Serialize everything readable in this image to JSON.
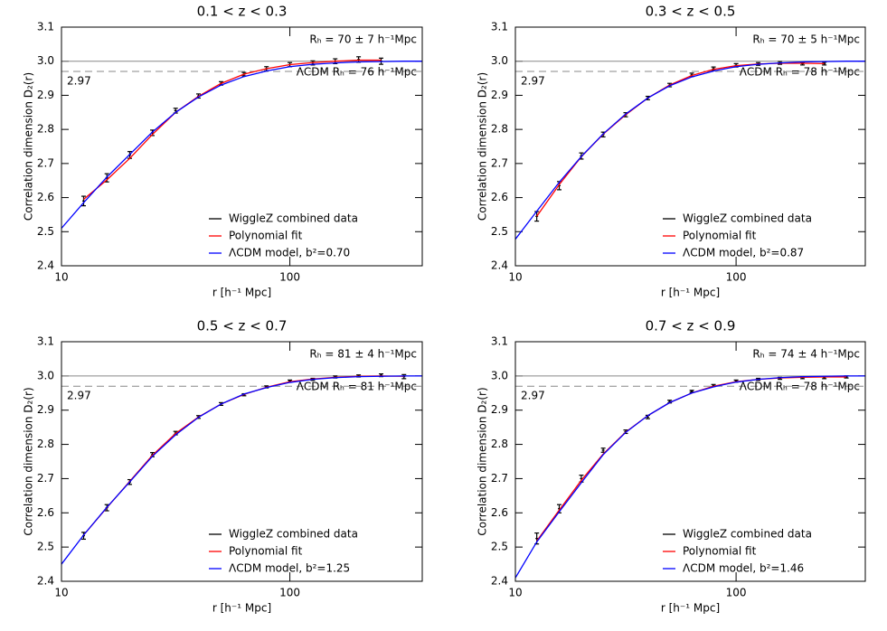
{
  "chart_data": [
    {
      "type": "line",
      "title": "0.1 < z < 0.3",
      "xlabel": "r [h⁻¹ Mpc]",
      "ylabel": "Correlation dimension D₂(r)",
      "log_x": true,
      "xlim": [
        10,
        380
      ],
      "ylim": [
        2.4,
        3.1
      ],
      "xticks": [
        10,
        100
      ],
      "yticks": [
        2.4,
        2.5,
        2.6,
        2.7,
        2.8,
        2.9,
        {
          "value": 3.0,
          "label": "3.0"
        },
        3.1
      ],
      "hlines": [
        {
          "y": 3.0,
          "style": "solid",
          "color": "#888888"
        },
        {
          "y": 2.97,
          "style": "dashed",
          "color": "#888888"
        }
      ],
      "annotations": [
        {
          "text": "Rₕ = 70 ± 7 h⁻¹Mpc",
          "color": "#ff0000"
        },
        {
          "text": "ΛCDM Rₕ = 76 h⁻¹Mpc",
          "color": "#0000ff"
        }
      ],
      "series": [
        {
          "name": "WiggleZ combined data",
          "color": "#000000",
          "style": "errorbar",
          "x": [
            12.5,
            15.8,
            19.9,
            25,
            31.6,
            39.8,
            50,
            63,
            79,
            100,
            126,
            158,
            200,
            251
          ],
          "values": [
            2.59,
            2.658,
            2.725,
            2.79,
            2.855,
            2.898,
            2.935,
            2.962,
            2.978,
            2.99,
            2.995,
            3.0,
            3.005,
            3.0
          ],
          "errors": [
            0.014,
            0.012,
            0.01,
            0.008,
            0.007,
            0.006,
            0.005,
            0.005,
            0.006,
            0.006,
            0.006,
            0.007,
            0.008,
            0.009
          ]
        },
        {
          "name": "Polynomial fit",
          "color": "#ff0000",
          "style": "line",
          "x": [
            12.5,
            15.8,
            19.9,
            25,
            31.6,
            39.8,
            50,
            63,
            79,
            100,
            126,
            158,
            200,
            251
          ],
          "values": [
            2.595,
            2.652,
            2.715,
            2.785,
            2.85,
            2.897,
            2.935,
            2.962,
            2.978,
            2.99,
            2.996,
            3.0,
            3.003,
            3.003
          ]
        },
        {
          "name": "ΛCDM model, b²=0.70",
          "color": "#0000ff",
          "style": "line",
          "x": [
            10,
            12.5,
            15.8,
            20,
            25,
            31.6,
            40,
            50,
            63,
            80,
            100,
            126,
            158,
            200,
            250,
            316,
            380
          ],
          "values": [
            2.51,
            2.585,
            2.66,
            2.728,
            2.792,
            2.85,
            2.896,
            2.93,
            2.955,
            2.972,
            2.984,
            2.991,
            2.995,
            2.998,
            2.999,
            3.0,
            3.0
          ]
        }
      ]
    },
    {
      "type": "line",
      "title": "0.3 < z < 0.5",
      "xlabel": "r [h⁻¹ Mpc]",
      "ylabel": "Correlation dimension D₂(r)",
      "log_x": true,
      "xlim": [
        10,
        385
      ],
      "ylim": [
        2.4,
        3.1
      ],
      "xticks": [
        10,
        100
      ],
      "yticks": [
        2.4,
        2.5,
        2.6,
        2.7,
        2.8,
        2.9,
        {
          "value": 3.0,
          "label": "3.0"
        },
        3.1
      ],
      "hlines": [
        {
          "y": 3.0,
          "style": "solid",
          "color": "#888888"
        },
        {
          "y": 2.97,
          "style": "dashed",
          "color": "#888888"
        }
      ],
      "annotations": [
        {
          "text": "Rₕ = 70 ± 5 h⁻¹Mpc",
          "color": "#ff0000"
        },
        {
          "text": "ΛCDM Rₕ = 78 h⁻¹Mpc",
          "color": "#0000ff"
        }
      ],
      "series": [
        {
          "name": "WiggleZ combined data",
          "color": "#000000",
          "style": "errorbar",
          "x": [
            12.5,
            15.8,
            19.9,
            25,
            31.6,
            39.8,
            50,
            63,
            79,
            100,
            126,
            158,
            200,
            251
          ],
          "values": [
            2.545,
            2.635,
            2.722,
            2.785,
            2.843,
            2.892,
            2.93,
            2.96,
            2.978,
            2.988,
            2.992,
            2.995,
            2.993,
            2.993
          ],
          "errors": [
            0.014,
            0.012,
            0.009,
            0.007,
            0.006,
            0.005,
            0.005,
            0.005,
            0.005,
            0.005,
            0.004,
            0.004,
            0.004,
            0.004
          ]
        },
        {
          "name": "Polynomial fit",
          "color": "#ff0000",
          "style": "line",
          "x": [
            12.5,
            15.8,
            19.9,
            25,
            31.6,
            39.8,
            50,
            63,
            79,
            100,
            126,
            158,
            200,
            251
          ],
          "values": [
            2.545,
            2.638,
            2.72,
            2.786,
            2.843,
            2.892,
            2.93,
            2.958,
            2.976,
            2.987,
            2.992,
            2.994,
            2.994,
            2.993
          ]
        },
        {
          "name": "ΛCDM model, b²=0.87",
          "color": "#0000ff",
          "style": "line",
          "x": [
            10,
            12.5,
            15.8,
            20,
            25,
            31.6,
            40,
            50,
            63,
            80,
            100,
            126,
            158,
            200,
            250,
            316,
            385
          ],
          "values": [
            2.478,
            2.56,
            2.645,
            2.722,
            2.787,
            2.845,
            2.893,
            2.928,
            2.954,
            2.972,
            2.984,
            2.991,
            2.995,
            2.998,
            2.999,
            3.0,
            3.0
          ]
        }
      ]
    },
    {
      "type": "line",
      "title": "0.5 < z < 0.7",
      "xlabel": "r [h⁻¹ Mpc]",
      "ylabel": "Correlation dimension D₂(r)",
      "log_x": true,
      "xlim": [
        10,
        380
      ],
      "ylim": [
        2.4,
        3.1
      ],
      "xticks": [
        10,
        100
      ],
      "yticks": [
        2.4,
        2.5,
        2.6,
        2.7,
        2.8,
        2.9,
        {
          "value": 3.0,
          "label": "3.0"
        },
        3.1
      ],
      "hlines": [
        {
          "y": 3.0,
          "style": "solid",
          "color": "#888888"
        },
        {
          "y": 2.97,
          "style": "dashed",
          "color": "#888888"
        }
      ],
      "annotations": [
        {
          "text": "Rₕ = 81 ± 4 h⁻¹Mpc",
          "color": "#ff0000"
        },
        {
          "text": "ΛCDM Rₕ = 81 h⁻¹Mpc",
          "color": "#0000ff"
        }
      ],
      "series": [
        {
          "name": "WiggleZ combined data",
          "color": "#000000",
          "style": "errorbar",
          "x": [
            12.5,
            15.8,
            19.9,
            25,
            31.6,
            39.8,
            50,
            63,
            79,
            100,
            126,
            158,
            200,
            251,
            316
          ],
          "values": [
            2.533,
            2.615,
            2.69,
            2.77,
            2.833,
            2.88,
            2.918,
            2.945,
            2.968,
            2.985,
            2.99,
            2.997,
            3.0,
            3.002,
            2.998
          ],
          "errors": [
            0.01,
            0.009,
            0.007,
            0.006,
            0.005,
            0.004,
            0.004,
            0.003,
            0.003,
            0.003,
            0.003,
            0.003,
            0.003,
            0.004,
            0.006
          ]
        },
        {
          "name": "Polynomial fit",
          "color": "#ff0000",
          "style": "line",
          "x": [
            12.5,
            15.8,
            19.9,
            25,
            31.6,
            39.8,
            50,
            63,
            79,
            100,
            126,
            158,
            200,
            251,
            316
          ],
          "values": [
            2.535,
            2.615,
            2.692,
            2.768,
            2.832,
            2.88,
            2.918,
            2.946,
            2.967,
            2.983,
            2.991,
            2.996,
            2.999,
            3.0,
            2.999
          ]
        },
        {
          "name": "ΛCDM model, b²=1.25",
          "color": "#0000ff",
          "style": "line",
          "x": [
            10,
            12.5,
            15.8,
            20,
            25,
            31.6,
            40,
            50,
            63,
            80,
            100,
            126,
            158,
            200,
            250,
            316,
            380
          ],
          "values": [
            2.45,
            2.535,
            2.616,
            2.692,
            2.765,
            2.828,
            2.88,
            2.918,
            2.947,
            2.967,
            2.981,
            2.99,
            2.995,
            2.998,
            2.999,
            3.0,
            3.0
          ]
        }
      ]
    },
    {
      "type": "line",
      "title": "0.7 < z < 0.9",
      "xlabel": "r [h⁻¹ Mpc]",
      "ylabel": "Correlation dimension D₂(r)",
      "log_x": true,
      "xlim": [
        10,
        385
      ],
      "ylim": [
        2.4,
        3.1
      ],
      "xticks": [
        10,
        100
      ],
      "yticks": [
        2.4,
        2.5,
        2.6,
        2.7,
        2.8,
        2.9,
        {
          "value": 3.0,
          "label": "3.0"
        },
        3.1
      ],
      "hlines": [
        {
          "y": 3.0,
          "style": "solid",
          "color": "#888888"
        },
        {
          "y": 2.97,
          "style": "dashed",
          "color": "#888888"
        }
      ],
      "annotations": [
        {
          "text": "Rₕ = 74 ± 4 h⁻¹Mpc",
          "color": "#ff0000"
        },
        {
          "text": "ΛCDM Rₕ = 78 h⁻¹Mpc",
          "color": "#0000ff"
        }
      ],
      "series": [
        {
          "name": "WiggleZ combined data",
          "color": "#000000",
          "style": "errorbar",
          "x": [
            12.5,
            15.8,
            19.9,
            25,
            31.6,
            39.8,
            50,
            63,
            79,
            100,
            126,
            158,
            200,
            251,
            316
          ],
          "values": [
            2.525,
            2.612,
            2.7,
            2.783,
            2.837,
            2.88,
            2.925,
            2.955,
            2.972,
            2.985,
            2.99,
            2.993,
            2.995,
            2.995,
            2.997
          ],
          "errors": [
            0.016,
            0.012,
            0.01,
            0.006,
            0.005,
            0.005,
            0.004,
            0.003,
            0.003,
            0.003,
            0.003,
            0.003,
            0.003,
            0.003,
            0.003
          ]
        },
        {
          "name": "Polynomial fit",
          "color": "#ff0000",
          "style": "line",
          "x": [
            12.5,
            15.8,
            19.9,
            25,
            31.6,
            39.8,
            50,
            63,
            79,
            100,
            126,
            158,
            200,
            251,
            316
          ],
          "values": [
            2.518,
            2.608,
            2.695,
            2.772,
            2.836,
            2.884,
            2.922,
            2.95,
            2.97,
            2.983,
            2.99,
            2.994,
            2.996,
            2.997,
            2.997
          ]
        },
        {
          "name": "ΛCDM model, b²=1.46",
          "color": "#0000ff",
          "style": "line",
          "x": [
            10,
            12.5,
            15.8,
            20,
            25,
            31.6,
            40,
            50,
            63,
            80,
            100,
            126,
            158,
            200,
            250,
            316,
            385
          ],
          "values": [
            2.41,
            2.515,
            2.603,
            2.69,
            2.77,
            2.835,
            2.885,
            2.922,
            2.95,
            2.969,
            2.982,
            2.99,
            2.995,
            2.998,
            2.999,
            3.0,
            3.0
          ]
        }
      ]
    }
  ]
}
